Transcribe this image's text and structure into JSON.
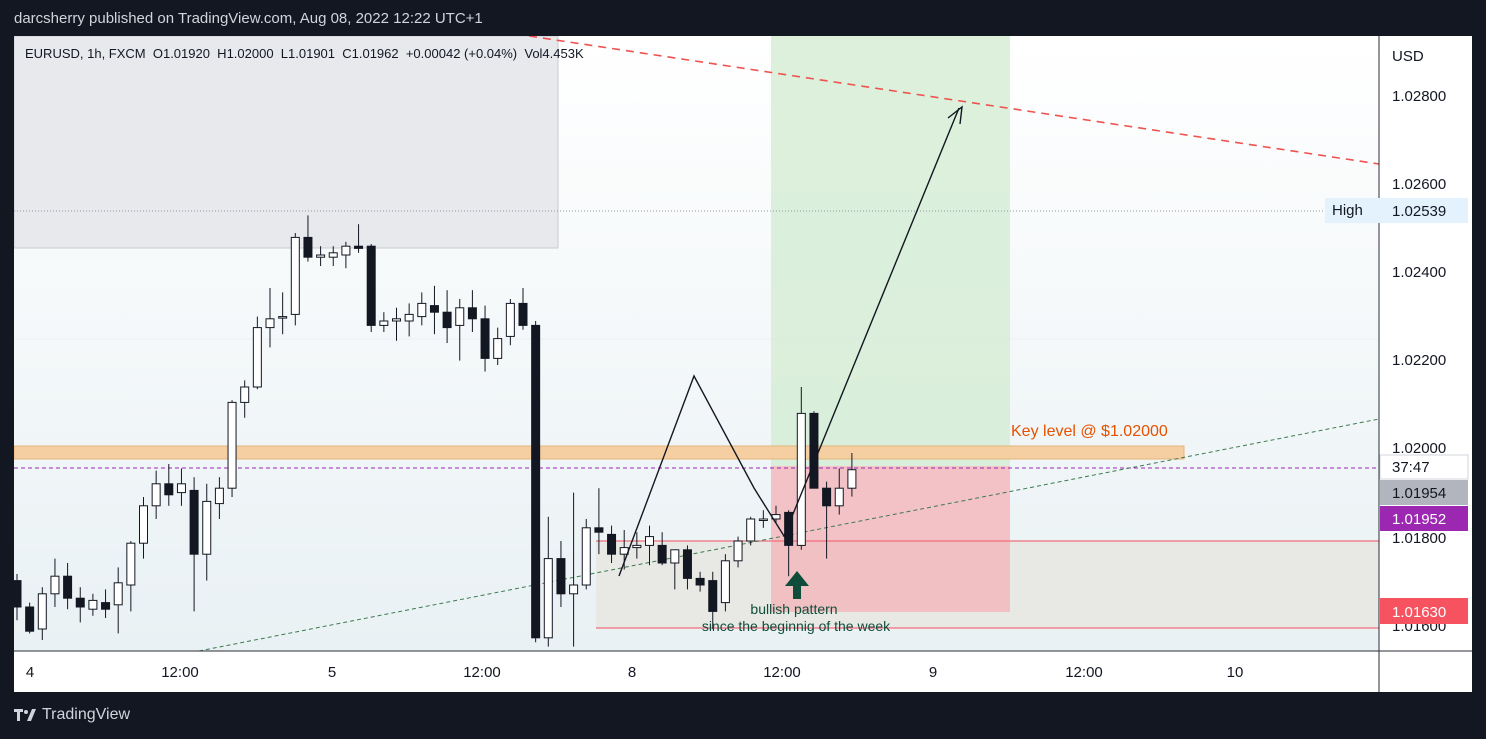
{
  "header": {
    "publish_text": "darcsherry published on TradingView.com, Aug 08, 2022 12:22 UTC+1"
  },
  "legend": {
    "text": "EURUSD, 1h, FXCM  O1.01920  H1.02000  L1.01901  C1.01962  +0.00042 (+0.04%)  Vol4.453K"
  },
  "axis": {
    "currency": "USD",
    "price_ticks": [
      "1.02800",
      "1.02600",
      "1.02400",
      "1.02200",
      "1.02000",
      "1.01800",
      "1.01600"
    ],
    "time_ticks": [
      "4",
      "12:00",
      "5",
      "12:00",
      "8",
      "12:00",
      "9",
      "12:00",
      "10"
    ]
  },
  "labels": {
    "high_label": "High",
    "high_value": "1.02539",
    "countdown": "37:47",
    "current_price": "1.01954",
    "purple_price": "1.01952",
    "red_price": "1.01630",
    "key_level": "Key level @ $1.02000",
    "pattern_line1": "bullish pattern",
    "pattern_line2": "since the beginnig of the week"
  },
  "brand": {
    "name": "TradingView"
  },
  "colors": {
    "key_level_text": "#e65100",
    "purple_tag": "#9c27b0",
    "red_tag": "#f7525f",
    "gray_tag": "#b2b5be",
    "green_zone": "#d4ecd4",
    "red_zone": "#f2b8bd",
    "arrow": "#0d4d3a"
  },
  "chart_data": {
    "type": "candlestick",
    "symbol": "EURUSD",
    "timeframe": "1h",
    "ylim": [
      1.0155,
      1.0295
    ],
    "candles": [
      {
        "o": 1.0171,
        "h": 1.01725,
        "l": 1.0162,
        "c": 1.0165
      },
      {
        "o": 1.0165,
        "h": 1.0166,
        "l": 1.0159,
        "c": 1.01595
      },
      {
        "o": 1.016,
        "h": 1.01695,
        "l": 1.01575,
        "c": 1.0168
      },
      {
        "o": 1.0168,
        "h": 1.0176,
        "l": 1.0165,
        "c": 1.0172
      },
      {
        "o": 1.0172,
        "h": 1.0175,
        "l": 1.01645,
        "c": 1.0167
      },
      {
        "o": 1.0167,
        "h": 1.01695,
        "l": 1.01615,
        "c": 1.0165
      },
      {
        "o": 1.01645,
        "h": 1.0168,
        "l": 1.0163,
        "c": 1.01665
      },
      {
        "o": 1.0166,
        "h": 1.0169,
        "l": 1.01625,
        "c": 1.01645
      },
      {
        "o": 1.01655,
        "h": 1.0174,
        "l": 1.0159,
        "c": 1.01705
      },
      {
        "o": 1.017,
        "h": 1.018,
        "l": 1.0164,
        "c": 1.01795
      },
      {
        "o": 1.01795,
        "h": 1.019,
        "l": 1.0176,
        "c": 1.0188
      },
      {
        "o": 1.0188,
        "h": 1.0196,
        "l": 1.0185,
        "c": 1.0193
      },
      {
        "o": 1.0193,
        "h": 1.01975,
        "l": 1.0188,
        "c": 1.01905
      },
      {
        "o": 1.0191,
        "h": 1.01965,
        "l": 1.0188,
        "c": 1.0193
      },
      {
        "o": 1.01915,
        "h": 1.01945,
        "l": 1.0164,
        "c": 1.0177
      },
      {
        "o": 1.0177,
        "h": 1.0193,
        "l": 1.0171,
        "c": 1.0189
      },
      {
        "o": 1.01885,
        "h": 1.01945,
        "l": 1.0185,
        "c": 1.0192
      },
      {
        "o": 1.0192,
        "h": 1.0212,
        "l": 1.019,
        "c": 1.02115
      },
      {
        "o": 1.02115,
        "h": 1.02165,
        "l": 1.0208,
        "c": 1.0215
      },
      {
        "o": 1.0215,
        "h": 1.0231,
        "l": 1.02145,
        "c": 1.02285
      },
      {
        "o": 1.02285,
        "h": 1.02375,
        "l": 1.0224,
        "c": 1.02305
      },
      {
        "o": 1.0231,
        "h": 1.02365,
        "l": 1.0227,
        "c": 1.0231
      },
      {
        "o": 1.02315,
        "h": 1.025,
        "l": 1.0229,
        "c": 1.0249
      },
      {
        "o": 1.0249,
        "h": 1.0254,
        "l": 1.02435,
        "c": 1.02445
      },
      {
        "o": 1.02445,
        "h": 1.0247,
        "l": 1.02425,
        "c": 1.0245
      },
      {
        "o": 1.02445,
        "h": 1.0247,
        "l": 1.02425,
        "c": 1.02455
      },
      {
        "o": 1.0245,
        "h": 1.0248,
        "l": 1.0242,
        "c": 1.0247
      },
      {
        "o": 1.0247,
        "h": 1.0252,
        "l": 1.02455,
        "c": 1.02465
      },
      {
        "o": 1.0247,
        "h": 1.02475,
        "l": 1.02275,
        "c": 1.0229
      },
      {
        "o": 1.0229,
        "h": 1.0232,
        "l": 1.02275,
        "c": 1.023
      },
      {
        "o": 1.023,
        "h": 1.0233,
        "l": 1.02255,
        "c": 1.02305
      },
      {
        "o": 1.023,
        "h": 1.0234,
        "l": 1.02265,
        "c": 1.02315
      },
      {
        "o": 1.0231,
        "h": 1.02365,
        "l": 1.0229,
        "c": 1.0234
      },
      {
        "o": 1.02335,
        "h": 1.0238,
        "l": 1.0227,
        "c": 1.0232
      },
      {
        "o": 1.0232,
        "h": 1.0237,
        "l": 1.0225,
        "c": 1.02285
      },
      {
        "o": 1.0229,
        "h": 1.0235,
        "l": 1.0221,
        "c": 1.0233
      },
      {
        "o": 1.0233,
        "h": 1.0237,
        "l": 1.02275,
        "c": 1.02305
      },
      {
        "o": 1.02305,
        "h": 1.02335,
        "l": 1.02185,
        "c": 1.02215
      },
      {
        "o": 1.02215,
        "h": 1.02285,
        "l": 1.022,
        "c": 1.0226
      },
      {
        "o": 1.02265,
        "h": 1.0235,
        "l": 1.02245,
        "c": 1.0234
      },
      {
        "o": 1.0234,
        "h": 1.02375,
        "l": 1.0228,
        "c": 1.0229
      },
      {
        "o": 1.0229,
        "h": 1.023,
        "l": 1.0157,
        "c": 1.0158
      },
      {
        "o": 1.0158,
        "h": 1.01855,
        "l": 1.0156,
        "c": 1.0176
      },
      {
        "o": 1.0176,
        "h": 1.018,
        "l": 1.0165,
        "c": 1.0168
      },
      {
        "o": 1.0168,
        "h": 1.0191,
        "l": 1.0156,
        "c": 1.017
      },
      {
        "o": 1.017,
        "h": 1.0185,
        "l": 1.0169,
        "c": 1.0183
      },
      {
        "o": 1.0183,
        "h": 1.0192,
        "l": 1.0177,
        "c": 1.0182
      },
      {
        "o": 1.01815,
        "h": 1.01835,
        "l": 1.0175,
        "c": 1.0177
      },
      {
        "o": 1.0177,
        "h": 1.01825,
        "l": 1.01735,
        "c": 1.01785
      },
      {
        "o": 1.01785,
        "h": 1.0182,
        "l": 1.0176,
        "c": 1.0179
      },
      {
        "o": 1.0179,
        "h": 1.01835,
        "l": 1.01745,
        "c": 1.0181
      },
      {
        "o": 1.0179,
        "h": 1.0182,
        "l": 1.01745,
        "c": 1.0175
      },
      {
        "o": 1.0175,
        "h": 1.0178,
        "l": 1.0169,
        "c": 1.0178
      },
      {
        "o": 1.0178,
        "h": 1.0179,
        "l": 1.0169,
        "c": 1.01715
      },
      {
        "o": 1.01715,
        "h": 1.0173,
        "l": 1.01685,
        "c": 1.017
      },
      {
        "o": 1.0171,
        "h": 1.0173,
        "l": 1.016,
        "c": 1.0164
      },
      {
        "o": 1.0166,
        "h": 1.0177,
        "l": 1.0164,
        "c": 1.01755
      },
      {
        "o": 1.01755,
        "h": 1.0181,
        "l": 1.0174,
        "c": 1.018
      },
      {
        "o": 1.018,
        "h": 1.01855,
        "l": 1.0179,
        "c": 1.0185
      },
      {
        "o": 1.0185,
        "h": 1.0187,
        "l": 1.0183,
        "c": 1.0185
      },
      {
        "o": 1.0185,
        "h": 1.0188,
        "l": 1.0184,
        "c": 1.0186
      },
      {
        "o": 1.01865,
        "h": 1.0187,
        "l": 1.0172,
        "c": 1.0179
      },
      {
        "o": 1.0179,
        "h": 1.0215,
        "l": 1.0178,
        "c": 1.0209
      },
      {
        "o": 1.0209,
        "h": 1.02095,
        "l": 1.0192,
        "c": 1.0192
      },
      {
        "o": 1.0192,
        "h": 1.01935,
        "l": 1.0176,
        "c": 1.0188
      },
      {
        "o": 1.0188,
        "h": 1.01965,
        "l": 1.0186,
        "c": 1.0192
      },
      {
        "o": 1.0192,
        "h": 1.02,
        "l": 1.01901,
        "c": 1.01962
      }
    ],
    "horizontal_levels": [
      1.02539,
      1.02,
      1.01954,
      1.01952,
      1.018,
      1.0163
    ]
  }
}
